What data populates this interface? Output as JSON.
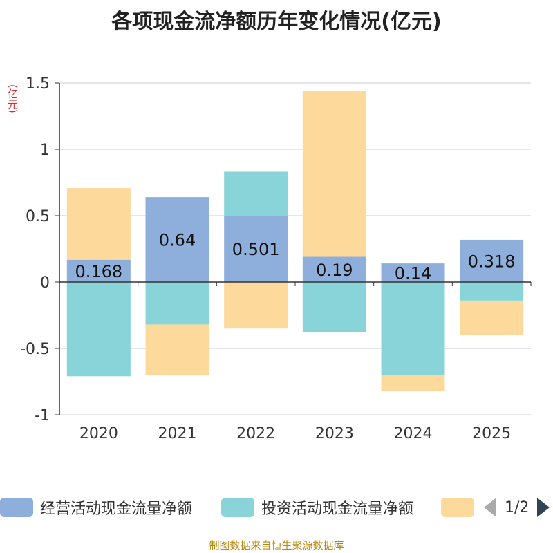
{
  "chart_data": {
    "type": "bar",
    "stacked": true,
    "title": "各项现金流净额历年变化情况(亿元)",
    "ylabel": "(亿元)",
    "categories": [
      "2020",
      "2021",
      "2022",
      "2023",
      "2024",
      "2025"
    ],
    "ylim": [
      -1,
      1.5
    ],
    "yticks": [
      1.5,
      1,
      0.5,
      0,
      -0.5,
      -1
    ],
    "ytick_labels": [
      "1.5",
      "1",
      "0.5",
      "0",
      "-0.5",
      "-1"
    ],
    "series": [
      {
        "name": "经营活动现金流量净额",
        "color": "#8eaedb",
        "values": [
          0.168,
          0.64,
          0.501,
          0.19,
          0.14,
          0.318
        ],
        "data_labels": [
          "0.168",
          "0.64",
          "0.501",
          "0.19",
          "0.14",
          "0.318"
        ]
      },
      {
        "name": "投资活动现金流量净额",
        "color": "#88d4d8",
        "values": [
          -0.71,
          -0.32,
          0.33,
          -0.38,
          -0.7,
          -0.14
        ]
      },
      {
        "name": "",
        "color": "#fdd99b",
        "values": [
          0.54,
          -0.38,
          -0.35,
          1.25,
          -0.12,
          -0.26
        ]
      }
    ]
  },
  "legend": {
    "items": [
      {
        "label": "经营活动现金流量净额",
        "color": "#8eaedb"
      },
      {
        "label": "投资活动现金流量净额",
        "color": "#88d4d8"
      },
      {
        "label": "",
        "color": "#fdd99b"
      }
    ],
    "page_text": "1/2"
  },
  "source_note": "制图数据来自恒生聚源数据库"
}
